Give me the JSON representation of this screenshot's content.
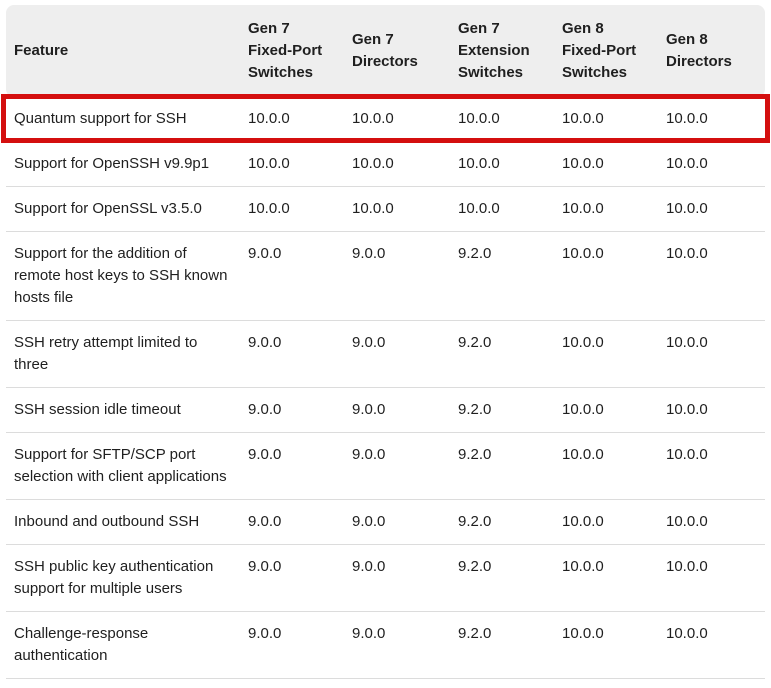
{
  "colors": {
    "highlight_red": "#d40f0f",
    "header_bg": "#eeeeee",
    "row_divider": "#dcdcdc",
    "text": "#1f1f1f"
  },
  "table": {
    "columns": [
      "Feature",
      "Gen 7 Fixed-Port Switches",
      "Gen 7 Directors",
      "Gen 7 Extension Switches",
      "Gen 8 Fixed-Port Switches",
      "Gen 8 Directors"
    ],
    "rows": [
      {
        "feature": "Quantum support for SSH",
        "values": [
          "10.0.0",
          "10.0.0",
          "10.0.0",
          "10.0.0",
          "10.0.0"
        ],
        "highlighted": true
      },
      {
        "feature": "Support for OpenSSH v9.9p1",
        "values": [
          "10.0.0",
          "10.0.0",
          "10.0.0",
          "10.0.0",
          "10.0.0"
        ],
        "highlighted": false
      },
      {
        "feature": "Support for OpenSSL v3.5.0",
        "values": [
          "10.0.0",
          "10.0.0",
          "10.0.0",
          "10.0.0",
          "10.0.0"
        ],
        "highlighted": false
      },
      {
        "feature": "Support for the addition of remote host keys to SSH known hosts file",
        "values": [
          "9.0.0",
          "9.0.0",
          "9.2.0",
          "10.0.0",
          "10.0.0"
        ],
        "highlighted": false
      },
      {
        "feature": "SSH retry attempt limited to three",
        "values": [
          "9.0.0",
          "9.0.0",
          "9.2.0",
          "10.0.0",
          "10.0.0"
        ],
        "highlighted": false
      },
      {
        "feature": "SSH session idle timeout",
        "values": [
          "9.0.0",
          "9.0.0",
          "9.2.0",
          "10.0.0",
          "10.0.0"
        ],
        "highlighted": false
      },
      {
        "feature": "Support for SFTP/SCP port selection with client applications",
        "values": [
          "9.0.0",
          "9.0.0",
          "9.2.0",
          "10.0.0",
          "10.0.0"
        ],
        "highlighted": false
      },
      {
        "feature": "Inbound and outbound SSH",
        "values": [
          "9.0.0",
          "9.0.0",
          "9.2.0",
          "10.0.0",
          "10.0.0"
        ],
        "highlighted": false
      },
      {
        "feature": "SSH public key authentication support for multiple users",
        "values": [
          "9.0.0",
          "9.0.0",
          "9.2.0",
          "10.0.0",
          "10.0.0"
        ],
        "highlighted": false
      },
      {
        "feature": "Challenge-response authentication",
        "values": [
          "9.0.0",
          "9.0.0",
          "9.2.0",
          "10.0.0",
          "10.0.0"
        ],
        "highlighted": false
      }
    ]
  }
}
